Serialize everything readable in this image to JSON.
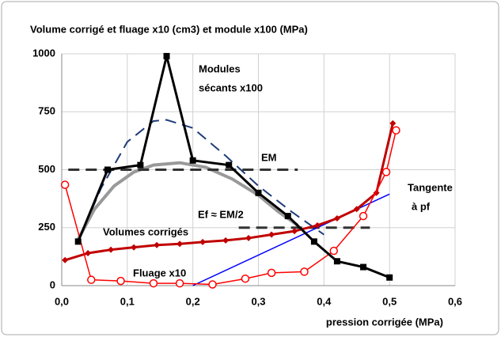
{
  "chart_data": {
    "type": "line",
    "title": "Volume corrigé et fluage x10 (cm3) et module x100 (MPa)",
    "x_label": "pression corrigée (MPa)",
    "xlim": [
      0,
      0.6
    ],
    "xticks": [
      {
        "value": 0,
        "label": "0,0"
      },
      {
        "value": 0.1,
        "label": "0,1"
      },
      {
        "value": 0.2,
        "label": "0,2"
      },
      {
        "value": 0.3,
        "label": "0,3"
      },
      {
        "value": 0.4,
        "label": "0,4"
      },
      {
        "value": 0.5,
        "label": "0,5"
      },
      {
        "value": 0.6,
        "label": "0,6"
      }
    ],
    "ylim": [
      0,
      1000
    ],
    "yticks": [
      0,
      250,
      500,
      750,
      1000
    ],
    "grid": true,
    "series": [
      {
        "color": "#999999",
        "marker": null,
        "dash": false,
        "width": 4,
        "x": [
          0.025,
          0.05,
          0.08,
          0.11,
          0.14,
          0.18,
          0.22,
          0.26,
          0.3,
          0.33,
          0.36
        ],
        "values": [
          200,
          330,
          430,
          490,
          520,
          530,
          510,
          460,
          390,
          320,
          260
        ]
      },
      {
        "color": "#1f3d7a",
        "marker": null,
        "dash": true,
        "width": 2,
        "x": [
          0.025,
          0.06,
          0.1,
          0.14,
          0.16,
          0.2,
          0.25,
          0.3,
          0.35,
          0.4
        ],
        "values": [
          190,
          420,
          620,
          710,
          715,
          680,
          560,
          430,
          320,
          220
        ]
      },
      {
        "color": "#333333",
        "marker": null,
        "dash": true,
        "width": 3,
        "x": [
          0.01,
          0.36
        ],
        "values": [
          500,
          500
        ]
      },
      {
        "color": "#333333",
        "marker": null,
        "dash": true,
        "width": 3,
        "x": [
          0.27,
          0.47
        ],
        "values": [
          250,
          250
        ]
      },
      {
        "color": "#0000ff",
        "marker": null,
        "dash": false,
        "width": 1.5,
        "x": [
          0.2,
          0.5
        ],
        "values": [
          0,
          395
        ]
      },
      {
        "color": "#c00000",
        "marker": "diamond",
        "dash": false,
        "width": 3,
        "x": [
          0.005,
          0.04,
          0.075,
          0.11,
          0.145,
          0.18,
          0.215,
          0.25,
          0.285,
          0.32,
          0.355,
          0.39,
          0.42,
          0.45,
          0.48,
          0.505
        ],
        "values": [
          110,
          140,
          155,
          165,
          175,
          180,
          188,
          195,
          205,
          220,
          235,
          260,
          290,
          330,
          400,
          700
        ]
      },
      {
        "color": "#ff0000",
        "marker": "circle",
        "dash": false,
        "width": 1.5,
        "x": [
          0.005,
          0.045,
          0.09,
          0.14,
          0.18,
          0.23,
          0.28,
          0.32,
          0.37,
          0.415,
          0.46,
          0.495,
          0.51
        ],
        "values": [
          435,
          25,
          20,
          10,
          10,
          5,
          30,
          55,
          60,
          150,
          300,
          490,
          670
        ]
      },
      {
        "color": "#000000",
        "marker": "square",
        "dash": false,
        "width": 3,
        "x": [
          0.025,
          0.07,
          0.12,
          0.16,
          0.2,
          0.255,
          0.3,
          0.345,
          0.385,
          0.42,
          0.46,
          0.5
        ],
        "values": [
          190,
          500,
          520,
          990,
          540,
          520,
          400,
          300,
          190,
          105,
          80,
          35
        ]
      }
    ],
    "annotations": [
      "Modules",
      "sécants x100",
      "EM",
      "Ef ≈ EM/2",
      "Tangente",
      "à pf",
      "Volumes corrigés",
      "Fluage x10"
    ]
  }
}
